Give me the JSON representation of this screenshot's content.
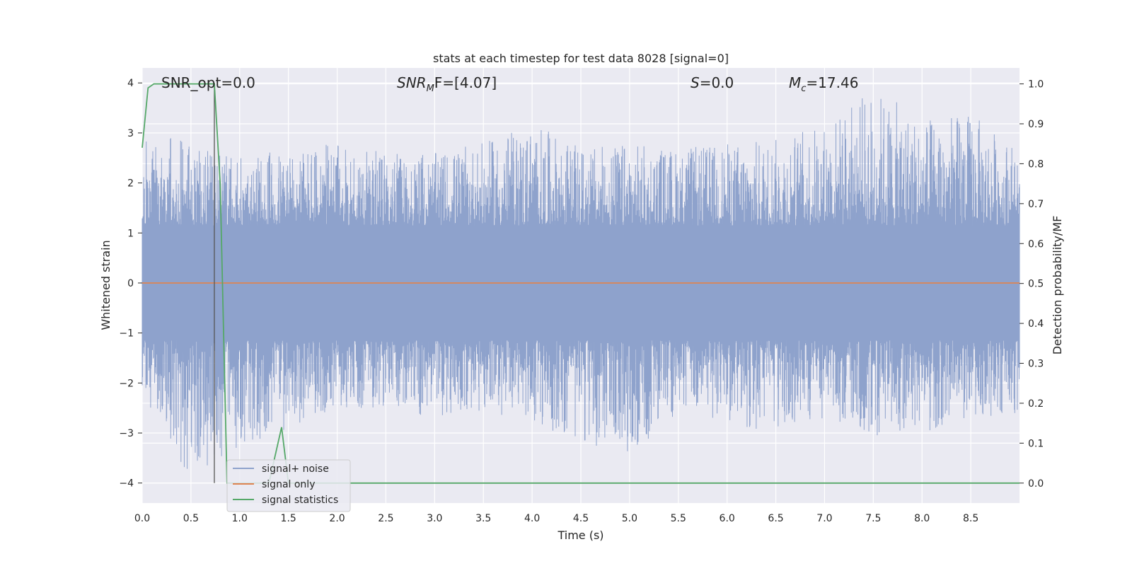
{
  "chart_data": {
    "type": "line",
    "title": "stats at each timestep for test data 8028 [signal=0]",
    "xlabel": "Time (s)",
    "ylabel": "Whitened strain",
    "y2label": "Detection probability/MF",
    "xlim": [
      0.0,
      9.0
    ],
    "ylim": [
      -4.4,
      4.3
    ],
    "y2lim": [
      -0.05,
      1.04
    ],
    "x_ticks": [
      "0.0",
      "0.5",
      "1.0",
      "1.5",
      "2.0",
      "2.5",
      "3.0",
      "3.5",
      "4.0",
      "4.5",
      "5.0",
      "5.5",
      "6.0",
      "6.5",
      "7.0",
      "7.5",
      "8.0",
      "8.5"
    ],
    "y_ticks": [
      "4",
      "3",
      "2",
      "1",
      "0",
      "−1",
      "−2",
      "−3",
      "−4"
    ],
    "y2_ticks": [
      "1.0",
      "0.9",
      "0.8",
      "0.7",
      "0.6",
      "0.5",
      "0.4",
      "0.3",
      "0.2",
      "0.1",
      "0.0"
    ],
    "grid": true,
    "legend_position": "lower-left",
    "annotations": {
      "snr_opt": "SNR_opt=0.0",
      "snr_mf_sym": "SNR",
      "snr_mf_sub": "M",
      "snr_mf_rest": "F=[4.07]",
      "s_sym": "S",
      "s_rest": "=0.0",
      "mc_sym": "M",
      "mc_sub": "c",
      "mc_rest": "=17.46"
    },
    "vertical_marker_x": 0.74,
    "series": [
      {
        "name": "signal+ noise",
        "axis": "left",
        "color": "#8ea2cc",
        "description_envelope": {
          "x": [
            0.0,
            0.5,
            1.0,
            1.5,
            2.0,
            2.5,
            3.0,
            3.5,
            4.0,
            4.5,
            5.0,
            5.5,
            6.0,
            6.5,
            7.0,
            7.5,
            8.0,
            8.5,
            9.0
          ],
          "max": [
            3.1,
            2.8,
            2.5,
            2.7,
            2.8,
            2.6,
            2.6,
            2.8,
            3.2,
            2.7,
            2.8,
            2.7,
            2.8,
            2.9,
            3.2,
            3.9,
            3.3,
            3.4,
            2.7
          ],
          "min": [
            -2.2,
            -4.0,
            -3.3,
            -2.9,
            -2.5,
            -2.5,
            -2.7,
            -2.6,
            -2.8,
            -3.2,
            -3.5,
            -2.6,
            -2.8,
            -3.1,
            -2.7,
            -3.1,
            -3.0,
            -2.7,
            -2.6
          ]
        }
      },
      {
        "name": "signal only",
        "axis": "left",
        "color": "#dd8452",
        "x": [
          0.0,
          9.0
        ],
        "y": [
          0.0,
          0.0
        ]
      },
      {
        "name": "signal statistics",
        "axis": "right",
        "color": "#55a868",
        "x": [
          0.0,
          0.06,
          0.12,
          0.2,
          0.3,
          0.5,
          0.7,
          0.74,
          0.8,
          0.87,
          1.3,
          1.43,
          1.5,
          1.6,
          2.0,
          9.0
        ],
        "y": [
          0.84,
          0.99,
          1.0,
          1.0,
          1.0,
          1.0,
          1.0,
          1.0,
          0.75,
          0.0,
          0.0,
          0.14,
          0.0,
          0.0,
          0.0,
          0.0
        ]
      }
    ]
  }
}
